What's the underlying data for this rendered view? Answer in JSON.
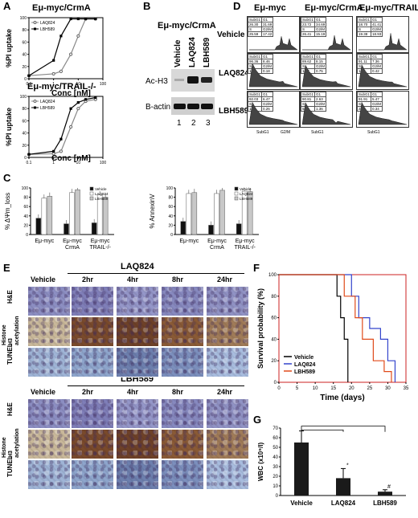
{
  "panels": {
    "A": "A",
    "B": "B",
    "C": "C",
    "D": "D",
    "E": "E",
    "F": "F",
    "G": "G"
  },
  "A": {
    "top": {
      "title": "Eμ-myc/CrmA",
      "ylabel": "%PI uptake",
      "xlabel": "Conc [nM]"
    },
    "bottom": {
      "title": "Eμ-myc/TRAIL-/-",
      "ylabel": "%PI uptake",
      "xlabel": "Conc [nM]"
    },
    "yticks": [
      "100",
      "80",
      "60",
      "40",
      "20",
      "0"
    ],
    "xticks": [
      "0.1",
      "1",
      "10",
      "100"
    ]
  },
  "B": {
    "title": "Eμ-myc/CrmA",
    "lanes": [
      "Vehicle",
      "LAQ824",
      "LBH589"
    ],
    "rows": [
      "Ac-H3",
      "B-actin"
    ],
    "lane_numbers": [
      "1",
      "2",
      "3"
    ]
  },
  "C": {
    "left": {
      "ylabel": "% ΔΨm_loss",
      "groups": [
        [
          "Eμ-myc"
        ],
        [
          "Eμ-myc",
          "CrmA"
        ],
        [
          "Eμ-myc",
          "TRAIL-/-"
        ]
      ]
    },
    "right": {
      "ylabel": "% AnnexinV",
      "groups": [
        [
          "Eμ-myc"
        ],
        [
          "Eμ-myc",
          "CrmA"
        ],
        [
          "Eμ-myc",
          "TRAIL-/-"
        ]
      ]
    },
    "yticks": [
      "100",
      "80",
      "60",
      "40",
      "20",
      "0"
    ],
    "legend": [
      "Vehicle",
      "LAQ824",
      "LBH589"
    ]
  },
  "D": {
    "columns": [
      "Eμ-myc",
      "Eμ-myc/CrmA",
      "Eμ-myc/TRAIL-/-"
    ],
    "rows": [
      "Vehicle",
      "LAQ824",
      "LBH589"
    ],
    "hdr": [
      "SubG1",
      "G1",
      "S",
      "G2/M"
    ],
    "cells": [
      [
        [
          "26.30",
          "31.69",
          "25.59",
          "17.42"
        ],
        [
          "23.72",
          "34.69",
          "26.41",
          "15.19"
        ],
        [
          "18.70",
          "41.41",
          "19.38",
          "18.93"
        ]
      ],
      [
        [
          "96.36",
          "8.46",
          "1.00",
          "0.18"
        ],
        [
          "89.62",
          "8.15",
          "1.37",
          "0.75"
        ],
        [
          "91.11",
          "7.36",
          "1.05",
          "0.42"
        ]
      ],
      [
        [
          "92.03",
          "6.47",
          "1.24",
          "0.26"
        ],
        [
          "90.81",
          "2.63",
          "5.19",
          "1.36"
        ],
        [
          "91.91",
          "5.47",
          "2.88",
          "0.34"
        ]
      ]
    ],
    "axis": [
      "SubG1",
      "G1",
      "G2/M"
    ]
  },
  "E": {
    "top": {
      "header": "LAQ824"
    },
    "bottom": {
      "header": "LBH589"
    },
    "cols": [
      "Vehicle",
      "2hr",
      "4hr",
      "8hr",
      "24hr"
    ],
    "rows": [
      "H&E",
      "Histone H3 acetylation",
      "TUNEL"
    ]
  },
  "F": {
    "ylabel": "Survival probability (%)",
    "xlabel": "Time (days)",
    "yticks": [
      "100",
      "80",
      "60",
      "40",
      "20",
      "0"
    ],
    "xticks": [
      "0",
      "5",
      "10",
      "15",
      "20",
      "25",
      "30",
      "35"
    ],
    "legend": [
      "Vehicle",
      "LAQ824",
      "LBH589"
    ],
    "colors": {
      "Vehicle": "#000000",
      "LAQ824": "#3344cc",
      "LBH589": "#e04a1a",
      "frame": "#cc2222"
    }
  },
  "G": {
    "ylabel": "WBC (x10⁹/l)",
    "yticks": [
      "70",
      "60",
      "50",
      "40",
      "30",
      "20",
      "10",
      "0"
    ],
    "star": "*",
    "hash": "#"
  },
  "chart_data": [
    {
      "type": "line",
      "panel": "A-top",
      "title": "Eμ-myc/CrmA",
      "xlabel": "Conc [nM]",
      "ylabel": "%PI uptake",
      "xscale": "log",
      "xlim": [
        0.1,
        100
      ],
      "ylim": [
        0,
        100
      ],
      "x": [
        0.1,
        1,
        2,
        5,
        10,
        20,
        50
      ],
      "series": [
        {
          "name": "LAQ824",
          "values": [
            5,
            8,
            12,
            40,
            70,
            98,
            98
          ]
        },
        {
          "name": "LBH589",
          "values": [
            5,
            30,
            70,
            98,
            98,
            98,
            98
          ]
        }
      ]
    },
    {
      "type": "line",
      "panel": "A-bottom",
      "title": "Eμ-myc/TRAIL-/-",
      "xlabel": "Conc [nM]",
      "ylabel": "%PI uptake",
      "xscale": "log",
      "xlim": [
        0.1,
        100
      ],
      "ylim": [
        0,
        100
      ],
      "x": [
        0.1,
        1,
        2,
        5,
        10,
        20,
        50
      ],
      "series": [
        {
          "name": "LAQ824",
          "values": [
            5,
            6,
            10,
            50,
            80,
            92,
            95
          ]
        },
        {
          "name": "LBH589",
          "values": [
            5,
            10,
            30,
            80,
            90,
            95,
            98
          ]
        }
      ]
    },
    {
      "type": "bar",
      "panel": "C-left",
      "ylabel": "% ΔΨm_loss",
      "ylim": [
        0,
        100
      ],
      "categories": [
        "Eμ-myc",
        "Eμ-myc CrmA",
        "Eμ-myc TRAIL-/-"
      ],
      "series": [
        {
          "name": "Vehicle",
          "values": [
            35,
            23,
            25
          ]
        },
        {
          "name": "LAQ824",
          "values": [
            78,
            90,
            85
          ]
        },
        {
          "name": "LBH589",
          "values": [
            82,
            96,
            80
          ]
        }
      ]
    },
    {
      "type": "bar",
      "panel": "C-right",
      "ylabel": "% AnnexinV",
      "ylim": [
        0,
        100
      ],
      "categories": [
        "Eμ-myc",
        "Eμ-myc CrmA",
        "Eμ-myc TRAIL-/-"
      ],
      "series": [
        {
          "name": "Vehicle",
          "values": [
            28,
            20,
            23
          ]
        },
        {
          "name": "LAQ824",
          "values": [
            88,
            88,
            93
          ]
        },
        {
          "name": "LBH589",
          "values": [
            90,
            95,
            92
          ]
        }
      ]
    },
    {
      "type": "line",
      "panel": "F",
      "xlabel": "Time (days)",
      "ylabel": "Survival probability (%)",
      "xlim": [
        0,
        35
      ],
      "ylim": [
        0,
        100
      ],
      "series": [
        {
          "name": "Vehicle",
          "steps": [
            [
              0,
              100
            ],
            [
              16,
              100
            ],
            [
              16,
              80
            ],
            [
              17,
              80
            ],
            [
              17,
              60
            ],
            [
              18,
              60
            ],
            [
              18,
              40
            ],
            [
              19,
              40
            ],
            [
              19,
              0
            ]
          ]
        },
        {
          "name": "LAQ824",
          "steps": [
            [
              0,
              100
            ],
            [
              20,
              100
            ],
            [
              20,
              80
            ],
            [
              22,
              80
            ],
            [
              22,
              60
            ],
            [
              25,
              60
            ],
            [
              25,
              50
            ],
            [
              28,
              50
            ],
            [
              28,
              40
            ],
            [
              30,
              40
            ],
            [
              30,
              20
            ],
            [
              32,
              20
            ],
            [
              32,
              0
            ]
          ]
        },
        {
          "name": "LBH589",
          "steps": [
            [
              0,
              100
            ],
            [
              18,
              100
            ],
            [
              18,
              80
            ],
            [
              21,
              80
            ],
            [
              21,
              60
            ],
            [
              23,
              60
            ],
            [
              23,
              40
            ],
            [
              26,
              40
            ],
            [
              26,
              20
            ],
            [
              29,
              20
            ],
            [
              29,
              10
            ],
            [
              31,
              10
            ],
            [
              31,
              0
            ]
          ]
        }
      ]
    },
    {
      "type": "bar",
      "panel": "G",
      "ylabel": "WBC (x10⁹/l)",
      "ylim": [
        0,
        70
      ],
      "categories": [
        "Vehicle",
        "LAQ824",
        "LBH589"
      ],
      "values": [
        55,
        18,
        4
      ],
      "errors": [
        12,
        10,
        2
      ]
    }
  ]
}
